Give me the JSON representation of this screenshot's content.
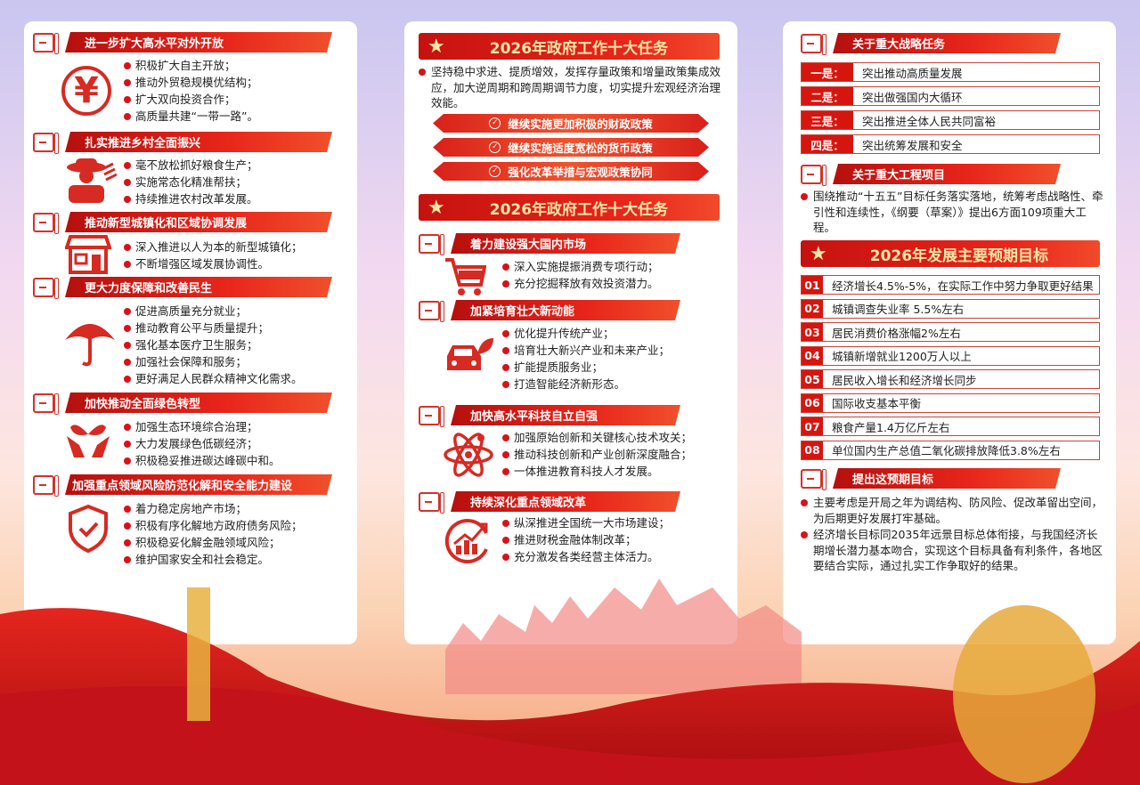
{
  "left": {
    "sections": [
      {
        "title": "进一步扩大高水平对外开放",
        "icon": "yuan-exchange-icon",
        "items": [
          "积极扩大自主开放；",
          "推动外贸稳规模优结构；",
          "扩大双向投资合作；",
          "高质量共建“一带一路”。"
        ]
      },
      {
        "title": "扎实推进乡村全面振兴",
        "icon": "farmer-icon",
        "items": [
          "毫不放松抓好粮食生产；",
          "实施常态化精准帮扶；",
          "持续推进农村改革发展。"
        ]
      },
      {
        "title": "推动新型城镇化和区域协调发展",
        "icon": "house-icon",
        "items": [
          "深入推进以人为本的新型城镇化；",
          "不断增强区域发展协调性。"
        ]
      },
      {
        "title": "更大力度保障和改善民生",
        "icon": "umbrella-icon",
        "items": [
          "促进高质量充分就业；",
          "推动教育公平与质量提升；",
          "强化基本医疗卫生服务；",
          "加强社会保障和服务；",
          "更好满足人民群众精神文化需求。"
        ]
      },
      {
        "title": "加快推动全面绿色转型",
        "icon": "hands-sprout-icon",
        "items": [
          "加强生态环境综合治理；",
          "大力发展绿色低碳经济；",
          "积极稳妥推进碳达峰碳中和。"
        ]
      },
      {
        "title": "加强重点领域风险防范化解和安全能力建设",
        "icon": "shield-check-icon",
        "items": [
          "着力稳定房地产市场；",
          "积极有序化解地方政府债务风险；",
          "积极稳妥化解金融领域风险；",
          "维护国家安全和社会稳定。"
        ]
      }
    ]
  },
  "middle": {
    "header1": "2026年政府工作十大任务",
    "intro": "坚持稳中求进、提质增效，发挥存量政策和增量政策集成效应，加大逆周期和跨周期调节力度，切实提升宏观经济治理效能。",
    "policies": [
      "继续实施更加积极的财政政策",
      "继续实施适度宽松的货币政策",
      "强化改革举措与宏观政策协同"
    ],
    "header2": "2026年政府工作十大任务",
    "sections": [
      {
        "title": "着力建设强大国内市场",
        "icon": "shopping-cart-icon",
        "items": [
          "深入实施提振消费专项行动；",
          "充分挖掘释放有效投资潜力。"
        ]
      },
      {
        "title": "加紧培育壮大新动能",
        "icon": "green-car-icon",
        "items": [
          "优化提升传统产业；",
          "培育壮大新兴产业和未来产业；",
          "扩能提质服务业；",
          "打造智能经济新形态。"
        ]
      },
      {
        "title": "加快高水平科技自立自强",
        "icon": "atom-icon",
        "items": [
          "加强原始创新和关键核心技术攻关；",
          "推动科技创新和产业创新深度融合；",
          "一体推进教育科技人才发展。"
        ]
      },
      {
        "title": "持续深化重点领域改革",
        "icon": "growth-chart-icon",
        "items": [
          "纵深推进全国统一大市场建设；",
          "推进财税金融体制改革；",
          "充分激发各类经营主体活力。"
        ]
      }
    ]
  },
  "right": {
    "strategic_title": "关于重大战略任务",
    "strategic": [
      {
        "label": "一是：",
        "text": "突出推动高质量发展"
      },
      {
        "label": "二是：",
        "text": "突出做强国内大循环"
      },
      {
        "label": "三是：",
        "text": "突出推进全体人民共同富裕"
      },
      {
        "label": "四是：",
        "text": "突出统筹发展和安全"
      }
    ],
    "projects_title": "关于重大工程项目",
    "projects_text": "围绕推动“十五五”目标任务落实落地，统筹考虑战略性、牵引性和连续性，《纲要（草案）》提出6方面109项重大工程。",
    "goals_title": "2026年发展主要预期目标",
    "goals": [
      {
        "num": "01",
        "text": "经济增长4.5%-5%，在实际工作中努力争取更好结果"
      },
      {
        "num": "02",
        "text": "城镇调查失业率 5.5%左右"
      },
      {
        "num": "03",
        "text": "居民消费价格涨幅2%左右"
      },
      {
        "num": "04",
        "text": "城镇新增就业1200万人以上"
      },
      {
        "num": "05",
        "text": "居民收入增长和经济增长同步"
      },
      {
        "num": "06",
        "text": "国际收支基本平衡"
      },
      {
        "num": "07",
        "text": "粮食产量1.4万亿斤左右"
      },
      {
        "num": "08",
        "text": "单位国内生产总值二氧化碳排放降低3.8%左右"
      }
    ],
    "reason_title": "提出这预期目标",
    "reasons": [
      "主要考虑是开局之年为调结构、防风险、促改革留出空间，为后期更好发展打牢基础。",
      "经济增长目标同2035年远景目标总体衔接，与我国经济长期增长潜力基本吻合，实现这个目标具备有利条件，各地区要结合实际，通过扎实工作争取好的结果。"
    ]
  },
  "colors": {
    "primary_red": "#d8121a",
    "gold": "#fde7a6"
  }
}
